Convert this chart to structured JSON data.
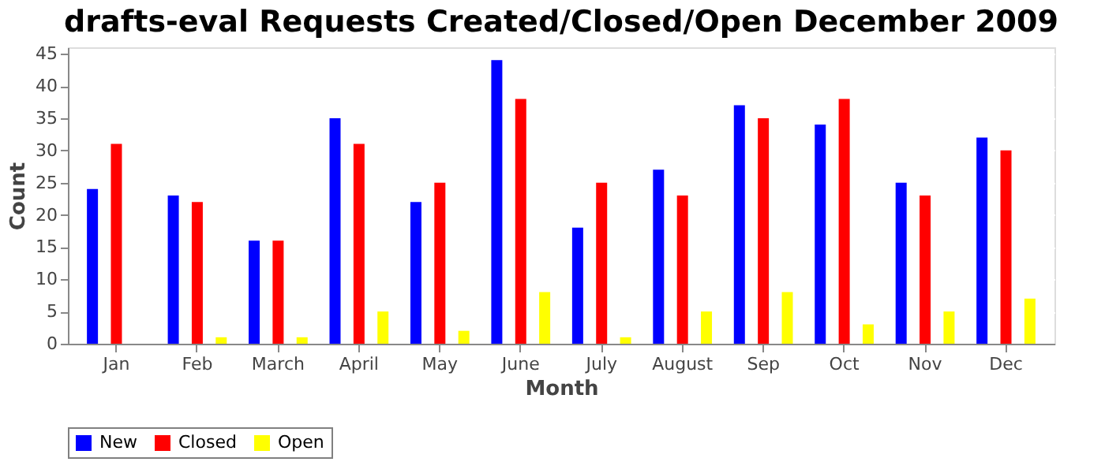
{
  "chart_data": {
    "type": "bar",
    "title": "drafts-eval Requests Created/Closed/Open December 2009",
    "xlabel": "Month",
    "ylabel": "Count",
    "categories": [
      "Jan",
      "Feb",
      "March",
      "April",
      "May",
      "June",
      "July",
      "August",
      "Sep",
      "Oct",
      "Nov",
      "Dec"
    ],
    "series": [
      {
        "name": "New",
        "color": "#0000ff",
        "values": [
          24,
          23,
          16,
          35,
          22,
          44,
          18,
          27,
          37,
          34,
          25,
          32
        ]
      },
      {
        "name": "Closed",
        "color": "#ff0000",
        "values": [
          31,
          22,
          16,
          31,
          25,
          38,
          25,
          23,
          35,
          38,
          23,
          30
        ]
      },
      {
        "name": "Open",
        "color": "#ffff00",
        "values": [
          0,
          1,
          1,
          5,
          2,
          8,
          1,
          5,
          8,
          3,
          5,
          7
        ]
      }
    ],
    "ylim": [
      0,
      46
    ],
    "yticks": [
      0,
      5,
      10,
      15,
      20,
      25,
      30,
      35,
      40,
      45
    ],
    "grid": "y",
    "legend": "bottom"
  }
}
